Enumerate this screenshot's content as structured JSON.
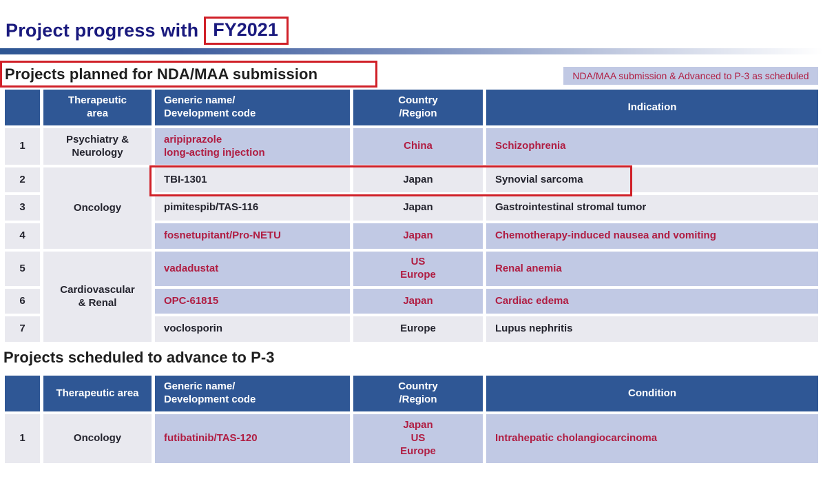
{
  "slide": {
    "title_prefix": "Project progress with",
    "title_highlight": "FY2021",
    "legend_note": "NDA/MAA submission & Advanced to P-3 as scheduled",
    "colors": {
      "header_blue": "#2F5795",
      "row_lavender": "#C1C9E4",
      "row_gray": "#E9E9EF",
      "text_red": "#B01D42",
      "outline_red": "#D02028",
      "title_navy": "#1A1A7E"
    }
  },
  "section1": {
    "heading": "Projects planned for NDA/MAA submission",
    "table": {
      "headers": {
        "num": "",
        "area": "Therapeutic\narea",
        "generic": "Generic name/\nDevelopment code",
        "country": "Country\n/Region",
        "indication": "Indication"
      },
      "rows": [
        {
          "num": "1",
          "area": "Psychiatry &\nNeurology",
          "generic": "aripiprazole\nlong-acting injection",
          "country": "China",
          "indication": "Schizophrenia",
          "highlighted": true
        },
        {
          "num": "2",
          "area": "Oncology",
          "generic": "TBI-1301",
          "country": "Japan",
          "indication": "Synovial sarcoma",
          "highlighted": false,
          "outlined": true
        },
        {
          "num": "3",
          "generic": "pimitespib/TAS-116",
          "country": "Japan",
          "indication": "Gastrointestinal stromal tumor",
          "highlighted": false
        },
        {
          "num": "4",
          "generic": "fosnetupitant/Pro-NETU",
          "country": "Japan",
          "indication": "Chemotherapy-induced nausea and vomiting",
          "highlighted": true
        },
        {
          "num": "5",
          "area": "Cardiovascular\n& Renal",
          "generic": "vadadustat",
          "country": "US\nEurope",
          "indication": "Renal anemia",
          "highlighted": true
        },
        {
          "num": "6",
          "generic": "OPC-61815",
          "country": "Japan",
          "indication": "Cardiac edema",
          "highlighted": true
        },
        {
          "num": "7",
          "generic": "voclosporin",
          "country": "Europe",
          "indication": "Lupus nephritis",
          "highlighted": false
        }
      ]
    }
  },
  "section2": {
    "heading": "Projects scheduled to advance to P-3",
    "table": {
      "headers": {
        "num": "",
        "area": "Therapeutic area",
        "generic": "Generic name/\nDevelopment code",
        "country": "Country\n/Region",
        "condition": "Condition"
      },
      "rows": [
        {
          "num": "1",
          "area": "Oncology",
          "generic": "futibatinib/TAS-120",
          "country": "Japan\nUS\nEurope",
          "condition": "Intrahepatic cholangiocarcinoma",
          "highlighted": true
        }
      ]
    }
  }
}
